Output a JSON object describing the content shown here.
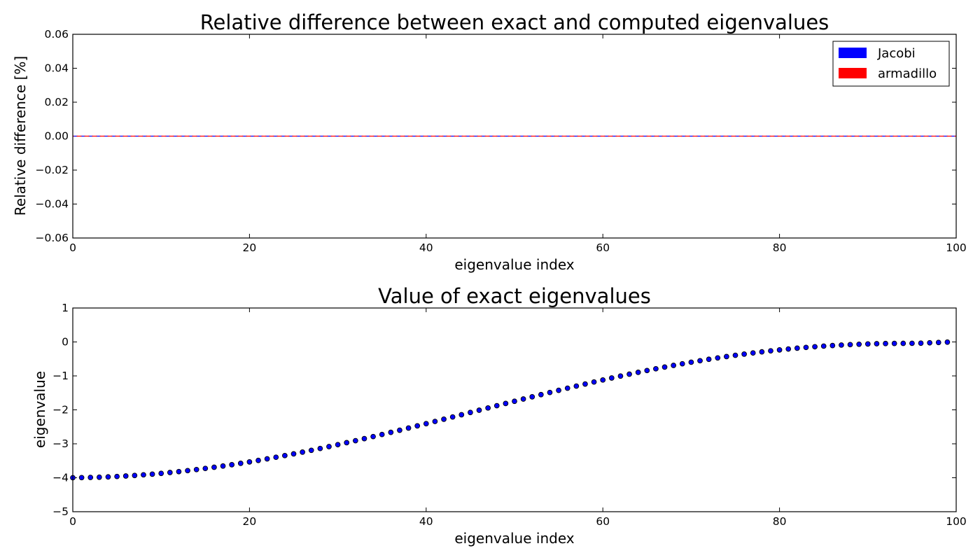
{
  "chart_data": [
    {
      "type": "line",
      "title": "Relative difference between exact and computed eigenvalues",
      "xlabel": "eigenvalue index",
      "ylabel": "Relative difference [%]",
      "xlim": [
        0,
        100
      ],
      "ylim": [
        -0.06,
        0.06
      ],
      "xticks": [
        "0",
        "20",
        "40",
        "60",
        "80",
        "100"
      ],
      "yticks": [
        "0.06",
        "0.04",
        "0.02",
        "0.00",
        "−0.02",
        "−0.04",
        "−0.06"
      ],
      "grid": false,
      "legend_position": "top-right",
      "series": [
        {
          "name": "Jacobi",
          "color": "#0000ff",
          "line_style": "dashed",
          "x": [
            0,
            100
          ],
          "y": [
            0,
            0
          ]
        },
        {
          "name": "armadillo",
          "color": "#ff0000",
          "line_style": "dashed",
          "x": [
            0,
            100
          ],
          "y": [
            0,
            0
          ]
        }
      ]
    },
    {
      "type": "scatter",
      "title": "Value of exact eigenvalues",
      "xlabel": "eigenvalue index",
      "ylabel": "eigenvalue",
      "xlim": [
        0,
        100
      ],
      "ylim": [
        -5,
        1
      ],
      "xticks": [
        "0",
        "20",
        "40",
        "60",
        "80",
        "100"
      ],
      "yticks": [
        "1",
        "0",
        "−1",
        "−2",
        "−3",
        "−4",
        "−5"
      ],
      "grid": false,
      "marker_color": "#0000ff",
      "x": [
        0,
        1,
        2,
        3,
        4,
        5,
        6,
        7,
        8,
        9,
        10,
        11,
        12,
        13,
        14,
        15,
        16,
        17,
        18,
        19,
        20,
        21,
        22,
        23,
        24,
        25,
        26,
        27,
        28,
        29,
        30,
        31,
        32,
        33,
        34,
        35,
        36,
        37,
        38,
        39,
        40,
        41,
        42,
        43,
        44,
        45,
        46,
        47,
        48,
        49,
        50,
        51,
        52,
        53,
        54,
        55,
        56,
        57,
        58,
        59,
        60,
        61,
        62,
        63,
        64,
        65,
        66,
        67,
        68,
        69,
        70,
        71,
        72,
        73,
        74,
        75,
        76,
        77,
        78,
        79,
        80,
        81,
        82,
        83,
        84,
        85,
        86,
        87,
        88,
        89,
        90,
        91,
        92,
        93,
        94,
        95,
        96,
        97,
        98,
        99
      ],
      "y": [
        -3.999,
        -3.996,
        -3.991,
        -3.984,
        -3.975,
        -3.963,
        -3.949,
        -3.933,
        -3.914,
        -3.894,
        -3.871,
        -3.846,
        -3.819,
        -3.79,
        -3.759,
        -3.726,
        -3.691,
        -3.655,
        -3.616,
        -3.575,
        -3.533,
        -3.489,
        -3.443,
        -3.396,
        -3.347,
        -3.297,
        -3.245,
        -3.192,
        -3.138,
        -3.082,
        -3.025,
        -2.967,
        -2.908,
        -2.848,
        -2.787,
        -2.726,
        -2.663,
        -2.6,
        -2.536,
        -2.472,
        -2.407,
        -2.341,
        -2.276,
        -2.21,
        -2.144,
        -2.077,
        -2.011,
        -1.945,
        -1.878,
        -1.812,
        -1.747,
        -1.681,
        -1.616,
        -1.552,
        -1.488,
        -1.425,
        -1.362,
        -1.3,
        -1.239,
        -1.179,
        -1.12,
        -1.062,
        -1.005,
        -0.949,
        -0.895,
        -0.842,
        -0.79,
        -0.74,
        -0.691,
        -0.643,
        -0.597,
        -0.553,
        -0.511,
        -0.47,
        -0.431,
        -0.393,
        -0.358,
        -0.324,
        -0.292,
        -0.262,
        -0.234,
        -0.208,
        -0.183,
        -0.161,
        -0.141,
        -0.122,
        -0.106,
        -0.091,
        -0.079,
        -0.068,
        -0.059,
        -0.052,
        -0.047,
        -0.044,
        -0.042,
        -0.04,
        -0.036,
        -0.025,
        -0.015,
        -0.005
      ]
    }
  ]
}
